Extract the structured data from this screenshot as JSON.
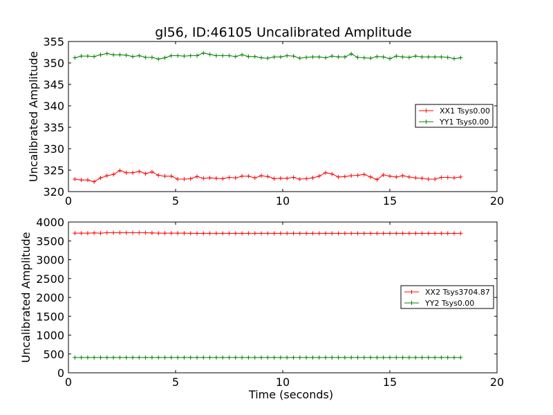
{
  "figure": {
    "title": "gl56, ID:46105 Uncalibrated Amplitude"
  },
  "colors": {
    "red": "#ff0000",
    "green": "#008000",
    "axes": "#000000",
    "background": "#ffffff"
  },
  "chart_data": [
    {
      "type": "line",
      "marker": "+",
      "ylabel": "Uncalibrated Amplitude",
      "xlabel": "",
      "xlim": [
        0,
        20
      ],
      "ylim": [
        320,
        355
      ],
      "xticks": [
        0,
        5,
        10,
        15,
        20
      ],
      "yticks": [
        320,
        325,
        330,
        335,
        340,
        345,
        350,
        355
      ],
      "legend_position": "center-right",
      "x": [
        0.3,
        0.6,
        0.9,
        1.2,
        1.5,
        1.8,
        2.1,
        2.4,
        2.7,
        3.0,
        3.3,
        3.6,
        3.9,
        4.2,
        4.5,
        4.8,
        5.1,
        5.4,
        5.7,
        6.0,
        6.3,
        6.6,
        6.9,
        7.2,
        7.5,
        7.8,
        8.1,
        8.4,
        8.7,
        9.0,
        9.3,
        9.6,
        9.9,
        10.2,
        10.5,
        10.8,
        11.1,
        11.4,
        11.7,
        12.0,
        12.3,
        12.6,
        12.9,
        13.2,
        13.5,
        13.8,
        14.1,
        14.4,
        14.7,
        15.0,
        15.3,
        15.6,
        15.9,
        16.2,
        16.5,
        16.8,
        17.1,
        17.4,
        17.7,
        18.0,
        18.3
      ],
      "series": [
        {
          "name": "XX1 Tsys0.00",
          "color": "#ff0000",
          "values": [
            322.9,
            322.7,
            322.7,
            322.3,
            323.2,
            323.7,
            324.0,
            324.9,
            324.4,
            324.4,
            324.7,
            324.2,
            324.6,
            323.8,
            323.6,
            323.6,
            322.9,
            322.9,
            323.0,
            323.5,
            323.1,
            323.2,
            323.1,
            323.0,
            323.3,
            323.2,
            323.6,
            323.6,
            323.2,
            323.7,
            323.5,
            323.0,
            323.1,
            323.1,
            323.3,
            322.9,
            323.0,
            323.2,
            323.6,
            324.4,
            324.1,
            323.4,
            323.5,
            323.7,
            323.8,
            324.0,
            323.4,
            322.8,
            323.9,
            323.6,
            323.4,
            323.7,
            323.4,
            323.2,
            323.1,
            322.9,
            322.9,
            323.3,
            323.3,
            323.2,
            323.4
          ]
        },
        {
          "name": "YY1 Tsys0.00",
          "color": "#008000",
          "values": [
            351.2,
            351.6,
            351.6,
            351.5,
            351.9,
            352.2,
            351.9,
            351.9,
            351.8,
            351.5,
            351.7,
            351.3,
            351.3,
            350.9,
            351.2,
            351.7,
            351.7,
            351.6,
            351.7,
            351.7,
            352.3,
            352.0,
            351.7,
            351.7,
            351.7,
            351.5,
            351.9,
            351.5,
            351.5,
            351.2,
            351.1,
            351.4,
            351.4,
            351.7,
            351.6,
            351.1,
            351.3,
            351.4,
            351.4,
            351.2,
            351.6,
            351.4,
            351.4,
            352.1,
            351.3,
            351.2,
            351.1,
            351.5,
            351.4,
            351.0,
            351.6,
            351.4,
            351.3,
            351.6,
            351.4,
            351.4,
            351.4,
            351.4,
            351.3,
            351.0,
            351.2
          ]
        }
      ]
    },
    {
      "type": "line",
      "marker": "+",
      "ylabel": "Uncalibrated Amplitude",
      "xlabel": "Time (seconds)",
      "xlim": [
        0,
        20
      ],
      "ylim": [
        0,
        4000
      ],
      "xticks": [
        0,
        5,
        10,
        15,
        20
      ],
      "yticks": [
        0,
        500,
        1000,
        1500,
        2000,
        2500,
        3000,
        3500,
        4000
      ],
      "legend_position": "center-right",
      "x": [
        0.3,
        0.6,
        0.9,
        1.2,
        1.5,
        1.8,
        2.1,
        2.4,
        2.7,
        3.0,
        3.3,
        3.6,
        3.9,
        4.2,
        4.5,
        4.8,
        5.1,
        5.4,
        5.7,
        6.0,
        6.3,
        6.6,
        6.9,
        7.2,
        7.5,
        7.8,
        8.1,
        8.4,
        8.7,
        9.0,
        9.3,
        9.6,
        9.9,
        10.2,
        10.5,
        10.8,
        11.1,
        11.4,
        11.7,
        12.0,
        12.3,
        12.6,
        12.9,
        13.2,
        13.5,
        13.8,
        14.1,
        14.4,
        14.7,
        15.0,
        15.3,
        15.6,
        15.9,
        16.2,
        16.5,
        16.8,
        17.1,
        17.4,
        17.7,
        18.0,
        18.3
      ],
      "series": [
        {
          "name": "XX2 Tsys3704.87",
          "color": "#ff0000",
          "values": [
            3705,
            3705,
            3705,
            3710,
            3705,
            3715,
            3715,
            3715,
            3715,
            3715,
            3715,
            3715,
            3710,
            3705,
            3705,
            3705,
            3705,
            3705,
            3700,
            3700,
            3700,
            3700,
            3700,
            3700,
            3700,
            3700,
            3700,
            3700,
            3700,
            3700,
            3700,
            3700,
            3700,
            3700,
            3700,
            3700,
            3700,
            3700,
            3700,
            3700,
            3700,
            3700,
            3700,
            3700,
            3700,
            3700,
            3700,
            3700,
            3700,
            3700,
            3700,
            3700,
            3700,
            3700,
            3700,
            3700,
            3700,
            3700,
            3700,
            3700,
            3700
          ]
        },
        {
          "name": "YY2 Tsys0.00",
          "color": "#008000",
          "values": [
            405,
            405,
            405,
            405,
            405,
            405,
            405,
            405,
            405,
            405,
            405,
            405,
            405,
            405,
            405,
            405,
            405,
            405,
            405,
            405,
            405,
            405,
            405,
            405,
            405,
            405,
            405,
            405,
            405,
            405,
            405,
            405,
            405,
            405,
            405,
            405,
            405,
            405,
            405,
            405,
            405,
            405,
            405,
            405,
            405,
            405,
            405,
            405,
            405,
            405,
            405,
            405,
            405,
            405,
            405,
            405,
            405,
            405,
            405,
            405,
            405
          ]
        }
      ]
    }
  ]
}
